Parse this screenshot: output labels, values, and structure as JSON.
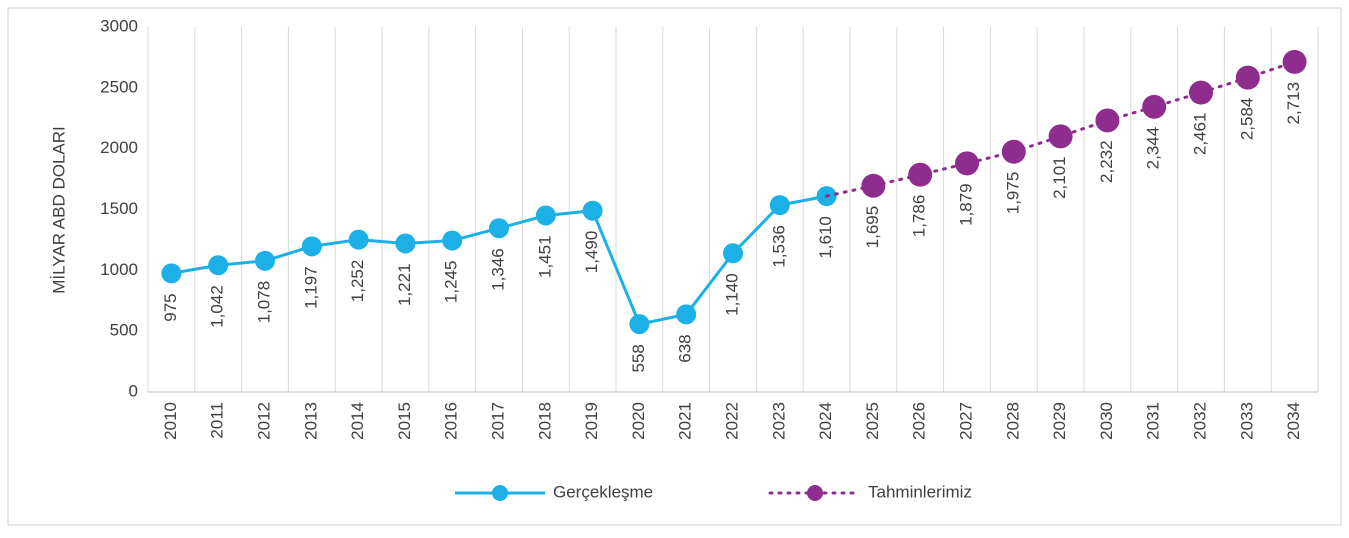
{
  "chart_data": {
    "type": "line",
    "y_label": "MİLYAR ABD DOLARI",
    "categories": [
      "2010",
      "2011",
      "2012",
      "2013",
      "2014",
      "2015",
      "2016",
      "2017",
      "2018",
      "2019",
      "2020",
      "2021",
      "2022",
      "2023",
      "2024",
      "2025",
      "2026",
      "2027",
      "2028",
      "2029",
      "2030",
      "2031",
      "2032",
      "2033",
      "2034"
    ],
    "series": [
      {
        "name": "Gerçekleşme",
        "color": "#1cb0e6",
        "style": "solid",
        "values": [
          975,
          1042,
          1078,
          1197,
          1252,
          1221,
          1245,
          1346,
          1451,
          1490,
          558,
          638,
          1140,
          1536,
          1610,
          null,
          null,
          null,
          null,
          null,
          null,
          null,
          null,
          null,
          null
        ],
        "value_labels": [
          "975",
          "1,042",
          "1,078",
          "1,197",
          "1,252",
          "1,221",
          "1,245",
          "1,346",
          "1,451",
          "1,490",
          "558",
          "638",
          "1,140",
          "1,536",
          "1,610",
          null,
          null,
          null,
          null,
          null,
          null,
          null,
          null,
          null,
          null
        ]
      },
      {
        "name": "Tahminlerimiz",
        "color": "#8e2d8e",
        "style": "dotted",
        "values": [
          null,
          null,
          null,
          null,
          null,
          null,
          null,
          null,
          null,
          null,
          null,
          null,
          null,
          null,
          null,
          1695,
          1786,
          1879,
          1975,
          2101,
          2232,
          2344,
          2461,
          2584,
          2713
        ],
        "value_labels": [
          null,
          null,
          null,
          null,
          null,
          null,
          null,
          null,
          null,
          null,
          null,
          null,
          null,
          null,
          null,
          "1,695",
          "1,786",
          "1,879",
          "1,975",
          "2,101",
          "2,232",
          "2,344",
          "2,461",
          "2,584",
          "2,713"
        ]
      }
    ],
    "ylim": [
      0,
      3000
    ],
    "yticks": [
      0,
      500,
      1000,
      1500,
      2000,
      2500,
      3000
    ],
    "grid": "vertical",
    "legend": "bottom"
  }
}
